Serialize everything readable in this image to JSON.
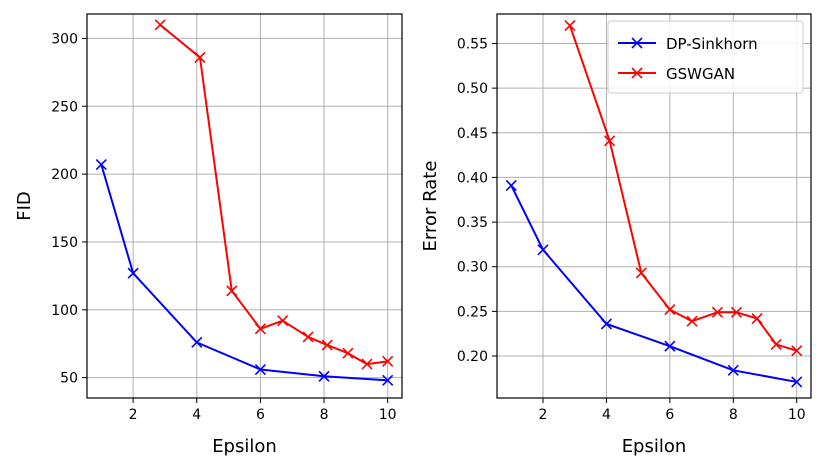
{
  "chart_data": [
    {
      "type": "line",
      "title": "",
      "xlabel": "Epsilon",
      "ylabel": "FID",
      "xlim": [
        0.55,
        10.45
      ],
      "ylim": [
        35,
        318
      ],
      "xticks": [
        2,
        4,
        6,
        8,
        10
      ],
      "yticks": [
        50,
        100,
        150,
        200,
        250,
        300
      ],
      "grid": true,
      "legend": null,
      "series": [
        {
          "name": "DP-Sinkhorn",
          "color": "#0000ff",
          "marker": "x",
          "x": [
            1,
            2,
            4,
            6,
            8,
            10
          ],
          "y": [
            207,
            127,
            76,
            56,
            51,
            48
          ]
        },
        {
          "name": "GSWGAN",
          "color": "#ff0000",
          "marker": "x",
          "x": [
            2.85,
            4.1,
            5.1,
            6.0,
            6.7,
            7.5,
            8.1,
            8.75,
            9.35,
            10.0
          ],
          "y": [
            310,
            286,
            114,
            86,
            92,
            80,
            74,
            68,
            60,
            62
          ]
        }
      ]
    },
    {
      "type": "line",
      "title": "",
      "xlabel": "Epsilon",
      "ylabel": "Error Rate",
      "xlim": [
        0.55,
        10.45
      ],
      "ylim": [
        0.153,
        0.583
      ],
      "xticks": [
        2,
        4,
        6,
        8,
        10
      ],
      "yticks": [
        0.2,
        0.25,
        0.3,
        0.35,
        0.4,
        0.45,
        0.5,
        0.55
      ],
      "ytick_labels": [
        "0.20",
        "0.25",
        "0.30",
        "0.35",
        "0.40",
        "0.45",
        "0.50",
        "0.55"
      ],
      "grid": true,
      "legend": "top-right",
      "series": [
        {
          "name": "DP-Sinkhorn",
          "color": "#0000ff",
          "marker": "x",
          "x": [
            1,
            2,
            4,
            6,
            8,
            10
          ],
          "y": [
            0.391,
            0.319,
            0.236,
            0.211,
            0.184,
            0.171
          ]
        },
        {
          "name": "GSWGAN",
          "color": "#ff0000",
          "marker": "x",
          "x": [
            2.85,
            4.1,
            5.1,
            6.0,
            6.7,
            7.5,
            8.1,
            8.75,
            9.35,
            10.0
          ],
          "y": [
            0.57,
            0.441,
            0.293,
            0.252,
            0.239,
            0.249,
            0.249,
            0.242,
            0.213,
            0.206
          ]
        }
      ]
    }
  ]
}
